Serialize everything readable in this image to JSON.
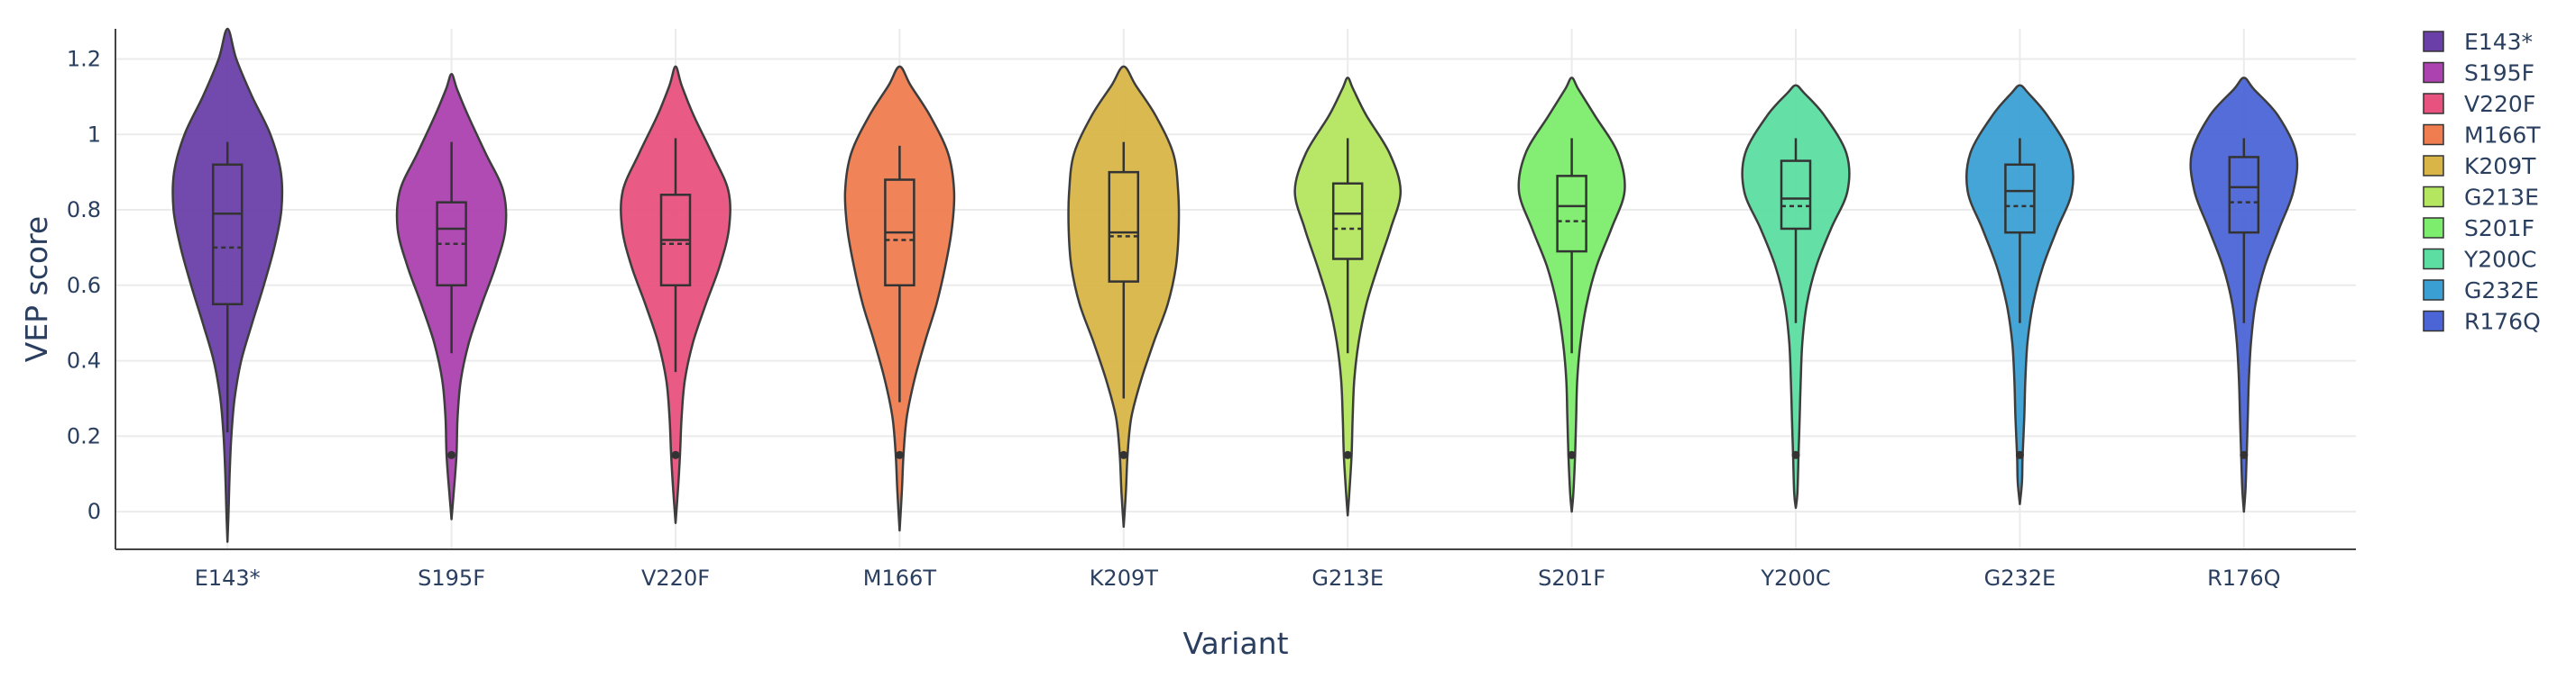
{
  "chart_data": {
    "type": "violin",
    "xlabel": "Variant",
    "ylabel": "VEP score",
    "ylim": [
      -0.1,
      1.28
    ],
    "yticks": [
      0,
      0.2,
      0.4,
      0.6,
      0.8,
      1,
      1.2
    ],
    "ytick_labels": [
      "0",
      "0.2",
      "0.4",
      "0.6",
      "0.8",
      "1",
      "1.2"
    ],
    "grid": true,
    "legend_position": "top-right",
    "categories": [
      "E143*",
      "S195F",
      "V220F",
      "M166T",
      "K209T",
      "G213E",
      "S201F",
      "Y200C",
      "G232E",
      "R176Q"
    ],
    "series": [
      {
        "name": "E143*",
        "color": "#6a3fa8",
        "kde_min": -0.08,
        "kde_max": 1.28,
        "whisker_low": 0.21,
        "q1": 0.55,
        "median": 0.79,
        "q3": 0.92,
        "whisker_high": 0.98,
        "mean": 0.7,
        "outlier": null,
        "shape": [
          [
            -0.08,
            0.0
          ],
          [
            0.0,
            0.02
          ],
          [
            0.1,
            0.04
          ],
          [
            0.2,
            0.07
          ],
          [
            0.3,
            0.13
          ],
          [
            0.4,
            0.25
          ],
          [
            0.5,
            0.45
          ],
          [
            0.6,
            0.66
          ],
          [
            0.7,
            0.85
          ],
          [
            0.8,
            0.98
          ],
          [
            0.9,
            0.97
          ],
          [
            1.0,
            0.78
          ],
          [
            1.1,
            0.45
          ],
          [
            1.2,
            0.16
          ],
          [
            1.28,
            0.0
          ]
        ]
      },
      {
        "name": "S195F",
        "color": "#ac41b0",
        "kde_min": -0.02,
        "kde_max": 1.16,
        "whisker_low": 0.42,
        "q1": 0.6,
        "median": 0.75,
        "q3": 0.82,
        "whisker_high": 0.98,
        "mean": 0.71,
        "outlier": 0.15,
        "shape": [
          [
            -0.02,
            0.0
          ],
          [
            0.05,
            0.04
          ],
          [
            0.15,
            0.09
          ],
          [
            0.25,
            0.11
          ],
          [
            0.35,
            0.17
          ],
          [
            0.45,
            0.32
          ],
          [
            0.55,
            0.55
          ],
          [
            0.65,
            0.8
          ],
          [
            0.75,
            0.98
          ],
          [
            0.85,
            0.94
          ],
          [
            0.95,
            0.62
          ],
          [
            1.05,
            0.3
          ],
          [
            1.12,
            0.1
          ],
          [
            1.16,
            0.0
          ]
        ]
      },
      {
        "name": "V220F",
        "color": "#e8527e",
        "kde_min": -0.03,
        "kde_max": 1.18,
        "whisker_low": 0.37,
        "q1": 0.6,
        "median": 0.72,
        "q3": 0.84,
        "whisker_high": 0.99,
        "mean": 0.71,
        "outlier": 0.15,
        "shape": [
          [
            -0.03,
            0.0
          ],
          [
            0.05,
            0.04
          ],
          [
            0.15,
            0.08
          ],
          [
            0.25,
            0.11
          ],
          [
            0.35,
            0.17
          ],
          [
            0.45,
            0.32
          ],
          [
            0.55,
            0.55
          ],
          [
            0.65,
            0.8
          ],
          [
            0.75,
            0.97
          ],
          [
            0.85,
            0.96
          ],
          [
            0.95,
            0.66
          ],
          [
            1.05,
            0.33
          ],
          [
            1.13,
            0.11
          ],
          [
            1.18,
            0.0
          ]
        ]
      },
      {
        "name": "M166T",
        "color": "#ef7d4f",
        "kde_min": -0.05,
        "kde_max": 1.18,
        "whisker_low": 0.29,
        "q1": 0.6,
        "median": 0.74,
        "q3": 0.88,
        "whisker_high": 0.97,
        "mean": 0.72,
        "outlier": 0.15,
        "shape": [
          [
            -0.05,
            0.0
          ],
          [
            0.05,
            0.04
          ],
          [
            0.15,
            0.07
          ],
          [
            0.25,
            0.13
          ],
          [
            0.35,
            0.27
          ],
          [
            0.45,
            0.46
          ],
          [
            0.55,
            0.67
          ],
          [
            0.65,
            0.83
          ],
          [
            0.75,
            0.95
          ],
          [
            0.85,
            0.99
          ],
          [
            0.95,
            0.88
          ],
          [
            1.05,
            0.55
          ],
          [
            1.13,
            0.2
          ],
          [
            1.18,
            0.0
          ]
        ]
      },
      {
        "name": "K209T",
        "color": "#d9b548",
        "kde_min": -0.04,
        "kde_max": 1.18,
        "whisker_low": 0.3,
        "q1": 0.61,
        "median": 0.74,
        "q3": 0.9,
        "whisker_high": 0.98,
        "mean": 0.73,
        "outlier": 0.15,
        "shape": [
          [
            -0.04,
            0.0
          ],
          [
            0.05,
            0.04
          ],
          [
            0.15,
            0.07
          ],
          [
            0.25,
            0.14
          ],
          [
            0.35,
            0.32
          ],
          [
            0.45,
            0.55
          ],
          [
            0.55,
            0.8
          ],
          [
            0.65,
            0.95
          ],
          [
            0.75,
            1.0
          ],
          [
            0.85,
            0.99
          ],
          [
            0.95,
            0.9
          ],
          [
            1.05,
            0.58
          ],
          [
            1.13,
            0.22
          ],
          [
            1.18,
            0.0
          ]
        ]
      },
      {
        "name": "G213E",
        "color": "#b4e660",
        "kde_min": -0.01,
        "kde_max": 1.15,
        "whisker_low": 0.42,
        "q1": 0.67,
        "median": 0.79,
        "q3": 0.87,
        "whisker_high": 0.99,
        "mean": 0.75,
        "outlier": 0.15,
        "shape": [
          [
            -0.01,
            0.0
          ],
          [
            0.05,
            0.03
          ],
          [
            0.15,
            0.07
          ],
          [
            0.25,
            0.09
          ],
          [
            0.35,
            0.12
          ],
          [
            0.45,
            0.2
          ],
          [
            0.55,
            0.34
          ],
          [
            0.65,
            0.55
          ],
          [
            0.75,
            0.78
          ],
          [
            0.85,
            0.96
          ],
          [
            0.95,
            0.76
          ],
          [
            1.05,
            0.34
          ],
          [
            1.12,
            0.1
          ],
          [
            1.15,
            0.0
          ]
        ]
      },
      {
        "name": "S201F",
        "color": "#7ced6c",
        "kde_min": 0.0,
        "kde_max": 1.15,
        "whisker_low": 0.42,
        "q1": 0.69,
        "median": 0.81,
        "q3": 0.89,
        "whisker_high": 0.99,
        "mean": 0.77,
        "outlier": 0.15,
        "shape": [
          [
            0.0,
            0.0
          ],
          [
            0.05,
            0.03
          ],
          [
            0.15,
            0.06
          ],
          [
            0.25,
            0.08
          ],
          [
            0.35,
            0.1
          ],
          [
            0.45,
            0.16
          ],
          [
            0.55,
            0.27
          ],
          [
            0.65,
            0.45
          ],
          [
            0.75,
            0.72
          ],
          [
            0.85,
            0.96
          ],
          [
            0.95,
            0.84
          ],
          [
            1.05,
            0.42
          ],
          [
            1.12,
            0.12
          ],
          [
            1.15,
            0.0
          ]
        ]
      },
      {
        "name": "Y200C",
        "color": "#5cdea2",
        "kde_min": 0.01,
        "kde_max": 1.13,
        "whisker_low": 0.5,
        "q1": 0.75,
        "median": 0.83,
        "q3": 0.93,
        "whisker_high": 0.99,
        "mean": 0.81,
        "outlier": 0.15,
        "shape": [
          [
            0.01,
            0.0
          ],
          [
            0.05,
            0.03
          ],
          [
            0.15,
            0.05
          ],
          [
            0.25,
            0.07
          ],
          [
            0.35,
            0.09
          ],
          [
            0.45,
            0.12
          ],
          [
            0.55,
            0.2
          ],
          [
            0.65,
            0.37
          ],
          [
            0.75,
            0.64
          ],
          [
            0.85,
            0.94
          ],
          [
            0.95,
            0.92
          ],
          [
            1.05,
            0.52
          ],
          [
            1.11,
            0.15
          ],
          [
            1.13,
            0.0
          ]
        ]
      },
      {
        "name": "G232E",
        "color": "#3aa0d4",
        "kde_min": 0.02,
        "kde_max": 1.13,
        "whisker_low": 0.5,
        "q1": 0.74,
        "median": 0.85,
        "q3": 0.92,
        "whisker_high": 0.99,
        "mean": 0.81,
        "outlier": 0.15,
        "shape": [
          [
            0.02,
            0.0
          ],
          [
            0.08,
            0.04
          ],
          [
            0.15,
            0.05
          ],
          [
            0.25,
            0.08
          ],
          [
            0.35,
            0.1
          ],
          [
            0.45,
            0.14
          ],
          [
            0.55,
            0.24
          ],
          [
            0.65,
            0.42
          ],
          [
            0.75,
            0.68
          ],
          [
            0.85,
            0.95
          ],
          [
            0.95,
            0.9
          ],
          [
            1.05,
            0.5
          ],
          [
            1.11,
            0.15
          ],
          [
            1.13,
            0.0
          ]
        ]
      },
      {
        "name": "R176Q",
        "color": "#4b65d6",
        "kde_min": 0.0,
        "kde_max": 1.15,
        "whisker_low": 0.5,
        "q1": 0.74,
        "median": 0.86,
        "q3": 0.94,
        "whisker_high": 0.99,
        "mean": 0.82,
        "outlier": 0.15,
        "shape": [
          [
            0.0,
            0.0
          ],
          [
            0.06,
            0.03
          ],
          [
            0.15,
            0.05
          ],
          [
            0.25,
            0.07
          ],
          [
            0.35,
            0.09
          ],
          [
            0.45,
            0.13
          ],
          [
            0.55,
            0.21
          ],
          [
            0.65,
            0.38
          ],
          [
            0.75,
            0.64
          ],
          [
            0.85,
            0.9
          ],
          [
            0.95,
            0.95
          ],
          [
            1.05,
            0.62
          ],
          [
            1.12,
            0.18
          ],
          [
            1.15,
            0.0
          ]
        ]
      }
    ]
  }
}
